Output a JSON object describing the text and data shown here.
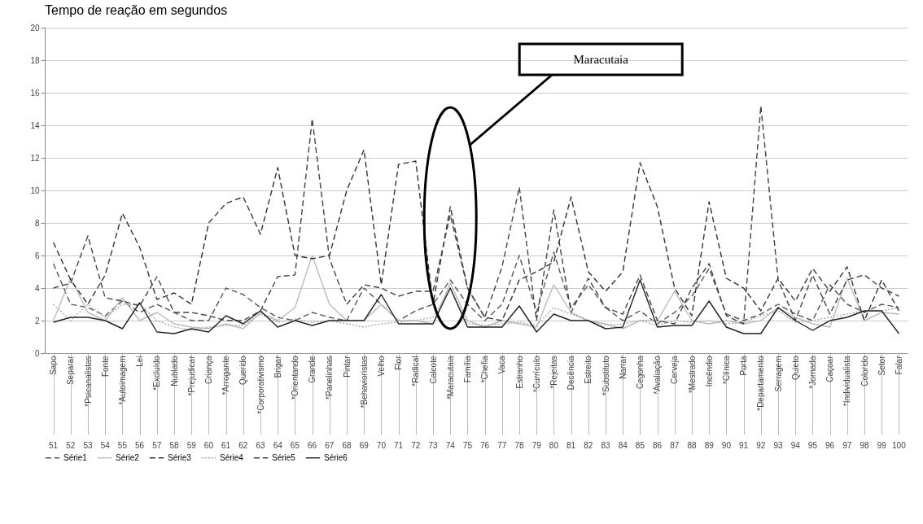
{
  "chart_data": {
    "type": "line",
    "title": "Tempo de reação em segundos",
    "categories": [
      "Sapo",
      "Separar",
      "*Psicanalistas",
      "Fonte",
      "*Autoimagem",
      "Lei",
      "*Excluído",
      "Nublado",
      "*Prejudicar",
      "Criança",
      "*Arrogante",
      "Querido",
      "*Corporativismo",
      "Brigar",
      "*Orientando",
      "Grande",
      "*Panelinhas",
      "Pintar",
      "*Behavioristas",
      "Velho",
      "Flor",
      "*Radical",
      "Calcote",
      "*Maracutaia",
      "Família",
      "*Chefia",
      "Vaca",
      "Estranho",
      "*Currículo",
      "*Rejeitas",
      "Decência",
      "Estreito",
      "*Substituto",
      "Narrar",
      "Cegonha",
      "*Avaliação",
      "Cerveja",
      "*Mestrado",
      "Incêndio",
      "*Clínica",
      "Porta",
      "*Departamento",
      "Serragem",
      "Quieto",
      "*Jornada",
      "Caçoar",
      "*Individualista",
      "Colorido",
      "Setor",
      "Falar"
    ],
    "ylim": [
      0,
      20
    ],
    "yticks": [
      0,
      2,
      4,
      6,
      8,
      10,
      12,
      14,
      16,
      18,
      20
    ],
    "grid": "y",
    "legend": "bottom",
    "annotations": [
      "Maracutaia",
      "51",
      "52",
      "53",
      "54",
      "55",
      "56",
      "57",
      "58",
      "59",
      "60",
      "61",
      "62",
      "63",
      "64",
      "65",
      "66",
      "67",
      "68",
      "69",
      "70",
      "71",
      "72",
      "73",
      "74",
      "75",
      "76",
      "77",
      "78",
      "79",
      "80",
      "81",
      "82",
      "83",
      "84",
      "85",
      "86",
      "87",
      "88",
      "89",
      "90",
      "91",
      "92",
      "93",
      "94",
      "95",
      "96",
      "97",
      "98",
      "99",
      "100"
    ],
    "series": [
      {
        "name": "Série1",
        "color": "#555555",
        "line_style": "dashed",
        "values": [
          5.5,
          3.0,
          2.8,
          2.3,
          3.2,
          2.5,
          3.0,
          2.5,
          2.0,
          2.0,
          4.0,
          3.6,
          2.8,
          2.2,
          2.0,
          2.5,
          2.2,
          2.0,
          4.0,
          3.0,
          2.0,
          2.6,
          3.0,
          4.5,
          3.0,
          2.0,
          3.0,
          6.0,
          2.5,
          6.2,
          2.8,
          4.2,
          2.8,
          2.0,
          2.6,
          1.8,
          2.5,
          3.5,
          5.2,
          2.4,
          2.0,
          2.4,
          3.0,
          2.4,
          2.0,
          4.2,
          3.0,
          2.5,
          3.0,
          2.8
        ]
      },
      {
        "name": "Série2",
        "color": "#bbbbbb",
        "line_style": "solid",
        "values": [
          2.0,
          4.6,
          2.5,
          2.0,
          3.4,
          2.0,
          2.5,
          1.8,
          1.6,
          1.5,
          1.8,
          1.5,
          2.5,
          2.0,
          2.8,
          6.0,
          3.0,
          2.0,
          2.0,
          3.0,
          2.0,
          2.0,
          1.8,
          4.3,
          2.0,
          1.6,
          2.0,
          1.8,
          1.6,
          4.2,
          2.5,
          2.0,
          1.8,
          1.5,
          2.0,
          2.0,
          3.8,
          2.0,
          1.8,
          2.0,
          1.8,
          2.0,
          2.8,
          2.2,
          1.8,
          1.6,
          4.6,
          2.0,
          2.5,
          2.4
        ]
      },
      {
        "name": "Série3",
        "color": "#333333",
        "line_style": "dashed",
        "values": [
          6.8,
          4.5,
          3.0,
          4.8,
          8.6,
          6.5,
          3.3,
          3.7,
          3.0,
          8.0,
          9.2,
          9.6,
          7.3,
          11.4,
          6.0,
          5.8,
          6.0,
          10.0,
          12.5,
          4.2,
          11.6,
          11.8,
          3.0,
          9.0,
          4.0,
          2.2,
          2.0,
          4.5,
          5.0,
          5.6,
          9.6,
          5.0,
          3.8,
          5.0,
          11.7,
          9.0,
          4.0,
          2.3,
          9.3,
          4.6,
          4.0,
          2.6,
          4.6,
          3.2,
          5.2,
          3.8,
          5.3,
          2.0,
          4.5,
          2.6
        ]
      },
      {
        "name": "Série4",
        "color": "#aaaaaa",
        "line_style": "dotted",
        "values": [
          3.0,
          2.0,
          3.0,
          2.2,
          3.0,
          3.0,
          2.0,
          1.6,
          1.4,
          1.6,
          1.7,
          1.7,
          2.4,
          1.9,
          2.1,
          1.9,
          2.0,
          1.8,
          1.6,
          1.8,
          1.9,
          2.0,
          2.2,
          4.0,
          1.8,
          1.7,
          1.8,
          1.9,
          1.7,
          2.8,
          2.4,
          2.0,
          1.7,
          1.8,
          2.0,
          1.7,
          2.0,
          1.9,
          2.0,
          1.8,
          1.9,
          2.3,
          2.6,
          1.9,
          2.0,
          2.2,
          2.4,
          2.6,
          2.6,
          2.8
        ]
      },
      {
        "name": "Série5",
        "color": "#444444",
        "line_style": "dashed",
        "values": [
          4.0,
          4.3,
          7.2,
          3.4,
          3.2,
          2.9,
          4.7,
          2.5,
          2.5,
          2.3,
          2.0,
          2.0,
          2.6,
          4.7,
          4.8,
          14.4,
          5.8,
          3.0,
          4.2,
          4.0,
          3.5,
          3.8,
          3.8,
          8.5,
          4.0,
          2.2,
          5.3,
          10.2,
          2.0,
          8.8,
          2.5,
          4.6,
          2.8,
          2.4,
          4.8,
          2.0,
          1.8,
          4.0,
          5.5,
          2.3,
          1.8,
          15.2,
          4.5,
          2.0,
          4.8,
          2.4,
          4.5,
          4.8,
          4.0,
          3.5
        ]
      },
      {
        "name": "Série6",
        "color": "#222222",
        "line_style": "solid",
        "values": [
          1.9,
          2.2,
          2.2,
          2.0,
          1.5,
          3.1,
          1.3,
          1.2,
          1.5,
          1.3,
          2.3,
          1.8,
          2.6,
          1.6,
          2.0,
          1.7,
          2.0,
          2.0,
          2.0,
          3.6,
          1.8,
          1.8,
          1.8,
          4.0,
          1.6,
          1.6,
          1.6,
          2.9,
          1.3,
          2.4,
          2.0,
          2.0,
          1.5,
          1.6,
          4.5,
          1.6,
          1.7,
          1.7,
          3.2,
          1.6,
          1.2,
          1.2,
          2.8,
          2.0,
          1.4,
          2.0,
          2.2,
          2.6,
          2.6,
          1.2
        ]
      }
    ]
  }
}
